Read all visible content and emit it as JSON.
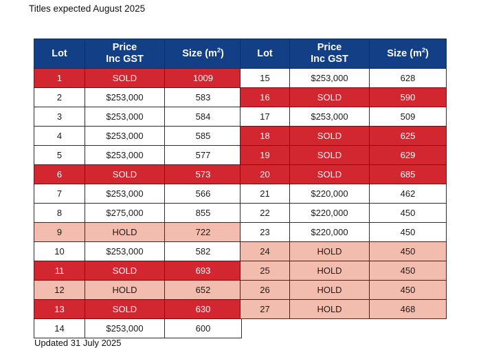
{
  "heading": "Titles expected August 2025",
  "footer": "Updated 31 July 2025",
  "columns": {
    "lot": "Lot",
    "price_line1": "Price",
    "price_line2": "Inc GST",
    "size": "Size (m",
    "size_sup": "2",
    "size_close": ")"
  },
  "colors": {
    "header": "#133f87",
    "sold": "#d22630",
    "hold": "#f2bdae"
  },
  "left_rows": [
    {
      "lot": "1",
      "price": "SOLD",
      "size": "1009",
      "status": "sold"
    },
    {
      "lot": "2",
      "price": "$253,000",
      "size": "583",
      "status": "avail"
    },
    {
      "lot": "3",
      "price": "$253,000",
      "size": "584",
      "status": "avail"
    },
    {
      "lot": "4",
      "price": "$253,000",
      "size": "585",
      "status": "avail"
    },
    {
      "lot": "5",
      "price": "$253,000",
      "size": "577",
      "status": "avail"
    },
    {
      "lot": "6",
      "price": "SOLD",
      "size": "573",
      "status": "sold"
    },
    {
      "lot": "7",
      "price": "$253,000",
      "size": "566",
      "status": "avail"
    },
    {
      "lot": "8",
      "price": "$275,000",
      "size": "855",
      "status": "avail"
    },
    {
      "lot": "9",
      "price": "HOLD",
      "size": "722",
      "status": "hold"
    },
    {
      "lot": "10",
      "price": "$253,000",
      "size": "582",
      "status": "avail"
    },
    {
      "lot": "11",
      "price": "SOLD",
      "size": "693",
      "status": "sold"
    },
    {
      "lot": "12",
      "price": "HOLD",
      "size": "652",
      "status": "hold"
    },
    {
      "lot": "13",
      "price": "SOLD",
      "size": "630",
      "status": "sold"
    },
    {
      "lot": "14",
      "price": "$253,000",
      "size": "600",
      "status": "avail"
    }
  ],
  "right_rows": [
    {
      "lot": "15",
      "price": "$253,000",
      "size": "628",
      "status": "avail"
    },
    {
      "lot": "16",
      "price": "SOLD",
      "size": "590",
      "status": "sold"
    },
    {
      "lot": "17",
      "price": "$253,000",
      "size": "509",
      "status": "avail"
    },
    {
      "lot": "18",
      "price": "SOLD",
      "size": "625",
      "status": "sold"
    },
    {
      "lot": "19",
      "price": "SOLD",
      "size": "629",
      "status": "sold"
    },
    {
      "lot": "20",
      "price": "SOLD",
      "size": "685",
      "status": "sold"
    },
    {
      "lot": "21",
      "price": "$220,000",
      "size": "462",
      "status": "avail"
    },
    {
      "lot": "22",
      "price": "$220,000",
      "size": "450",
      "status": "avail"
    },
    {
      "lot": "23",
      "price": "$220,000",
      "size": "450",
      "status": "avail"
    },
    {
      "lot": "24",
      "price": "HOLD",
      "size": "450",
      "status": "hold"
    },
    {
      "lot": "25",
      "price": "HOLD",
      "size": "450",
      "status": "hold"
    },
    {
      "lot": "26",
      "price": "HOLD",
      "size": "450",
      "status": "hold"
    },
    {
      "lot": "27",
      "price": "HOLD",
      "size": "468",
      "status": "hold"
    }
  ]
}
